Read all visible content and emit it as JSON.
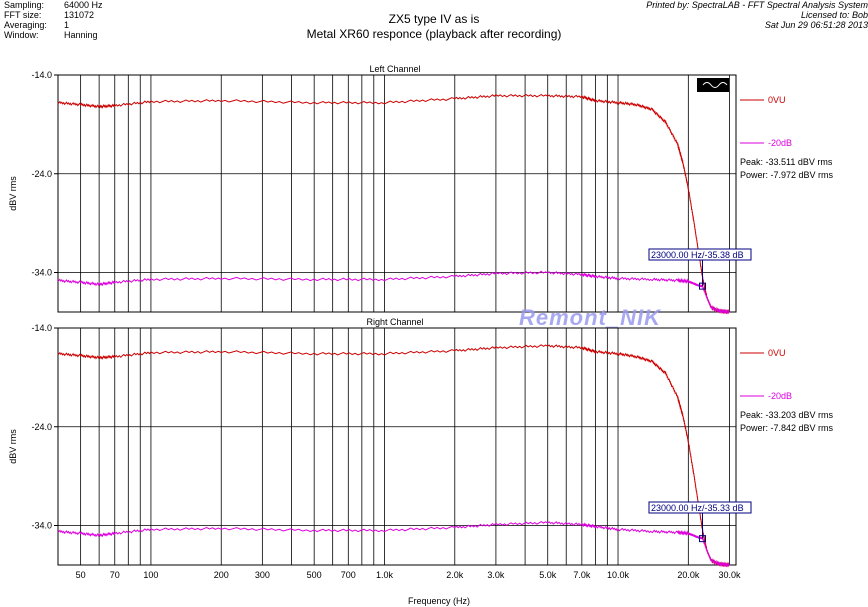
{
  "header": {
    "rows": [
      {
        "key": "Sampling:",
        "value": "64000 Hz"
      },
      {
        "key": "FFT size:",
        "value": "131072"
      },
      {
        "key": "Averaging:",
        "value": "1"
      },
      {
        "key": "Window:",
        "value": "Hanning"
      }
    ],
    "printed_by": "Printed by: SpectraLAB - FFT Spectral Analysis System",
    "licensed_to": "Licensed to: Bob",
    "date": "Sat Jun 29 06:51:28 2013"
  },
  "title_line1": "ZX5 type IV as is",
  "title_line2": "Metal XR60 responce (playback after recording)",
  "watermark": "Remont_NIK",
  "colors": {
    "red": "#cc0000",
    "magenta": "#dd00dd",
    "grid": "#000000",
    "marker": "#000080"
  },
  "chart_data": [
    {
      "type": "line",
      "title": "Left Channel",
      "xlabel": "",
      "ylabel": "dBV rms",
      "x_scale": "log",
      "xlim": [
        40,
        32000
      ],
      "ylim": [
        -38.0,
        -14.0
      ],
      "ytick_labels": [
        "-14.0",
        "-24.0",
        "-34.0"
      ],
      "series": [
        {
          "name": "0VU",
          "color": "#cc0000",
          "x": [
            40,
            50,
            60,
            70,
            100,
            200,
            500,
            1000,
            2000,
            3000,
            5000,
            7000,
            8000,
            10000,
            12000,
            14000,
            16000,
            18000,
            19000,
            20000,
            21000,
            22000,
            23000,
            24000,
            25000,
            27000,
            30000
          ],
          "y": [
            -16.8,
            -17.0,
            -17.2,
            -17.1,
            -16.7,
            -16.6,
            -16.8,
            -16.8,
            -16.4,
            -16.1,
            -16.1,
            -16.2,
            -16.6,
            -16.8,
            -17.0,
            -17.5,
            -18.8,
            -21.0,
            -23.0,
            -25.5,
            -28.5,
            -31.5,
            -34.5,
            -36.5,
            -37.5,
            -37.9,
            -38.0
          ]
        },
        {
          "name": "-20dB",
          "color": "#dd00dd",
          "x": [
            40,
            50,
            60,
            70,
            100,
            200,
            500,
            1000,
            2000,
            3000,
            5000,
            7000,
            8000,
            10000,
            14000,
            18000,
            20000,
            21000,
            22000,
            23000,
            24000,
            25000,
            27000,
            30000
          ],
          "y": [
            -34.8,
            -35.0,
            -35.2,
            -35.0,
            -34.7,
            -34.6,
            -34.7,
            -34.7,
            -34.4,
            -34.1,
            -34.0,
            -34.2,
            -34.4,
            -34.6,
            -34.7,
            -34.8,
            -34.9,
            -35.1,
            -35.3,
            -35.4,
            -36.5,
            -37.5,
            -37.9,
            -38.0
          ]
        }
      ],
      "stats": [
        {
          "label": "Peak:",
          "value": "-33.511 dBV rms"
        },
        {
          "label": "Power:",
          "value": "-7.972 dBV rms"
        }
      ],
      "marker_label": "23000.00 Hz/-35.38 dB"
    },
    {
      "type": "line",
      "title": "Right Channel",
      "xlabel": "Frequency (Hz)",
      "ylabel": "dBV rms",
      "x_scale": "log",
      "xlim": [
        40,
        32000
      ],
      "ylim": [
        -38.0,
        -14.0
      ],
      "ytick_labels": [
        "-14.0",
        "-24.0",
        "-34.0"
      ],
      "xtick_labels": [
        "50",
        "70",
        "100",
        "200",
        "300",
        "500",
        "700",
        "1.0k",
        "2.0k",
        "3.0k",
        "5.0k",
        "7.0k",
        "10.0k",
        "20.0k",
        "30.0k"
      ],
      "xtick_values": [
        50,
        70,
        100,
        200,
        300,
        500,
        700,
        1000,
        2000,
        3000,
        5000,
        7000,
        10000,
        20000,
        30000
      ],
      "series": [
        {
          "name": "0VU",
          "color": "#cc0000",
          "x": [
            40,
            50,
            60,
            70,
            100,
            200,
            500,
            1000,
            2000,
            3000,
            5000,
            7000,
            8000,
            10000,
            12000,
            14000,
            16000,
            18000,
            19000,
            20000,
            21000,
            22000,
            23000,
            24000,
            25000,
            27000,
            30000
          ],
          "y": [
            -16.6,
            -16.8,
            -17.0,
            -16.9,
            -16.5,
            -16.4,
            -16.6,
            -16.6,
            -16.3,
            -16.0,
            -15.8,
            -16.0,
            -16.4,
            -16.6,
            -16.9,
            -17.4,
            -18.6,
            -21.0,
            -23.0,
            -25.5,
            -28.5,
            -31.5,
            -34.5,
            -36.5,
            -37.5,
            -37.9,
            -38.0
          ]
        },
        {
          "name": "-20dB",
          "color": "#dd00dd",
          "x": [
            40,
            50,
            60,
            70,
            100,
            200,
            500,
            1000,
            2000,
            3000,
            5000,
            7000,
            8000,
            10000,
            14000,
            18000,
            20000,
            21000,
            22000,
            23000,
            24000,
            25000,
            27000,
            30000
          ],
          "y": [
            -34.6,
            -34.8,
            -35.0,
            -34.8,
            -34.4,
            -34.3,
            -34.5,
            -34.5,
            -34.2,
            -33.9,
            -33.7,
            -33.9,
            -34.1,
            -34.4,
            -34.6,
            -34.7,
            -34.8,
            -35.0,
            -35.2,
            -35.3,
            -36.5,
            -37.5,
            -37.9,
            -38.0
          ]
        }
      ],
      "stats": [
        {
          "label": "Peak:",
          "value": "-33.203 dBV rms"
        },
        {
          "label": "Power:",
          "value": "-7.842 dBV rms"
        }
      ],
      "marker_label": "23000.00 Hz/-35.33 dB"
    }
  ]
}
